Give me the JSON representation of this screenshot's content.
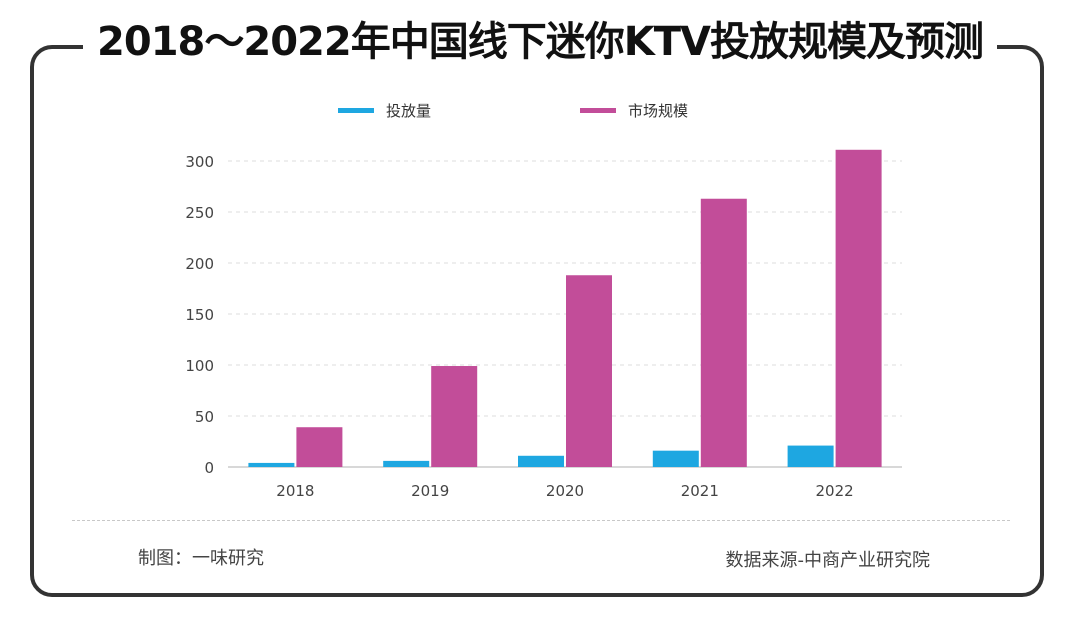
{
  "header": {
    "title": "2018～2022年中国线下迷你KTV投放规模及预测"
  },
  "footer": {
    "left": "制图：一味研究",
    "right": "数据来源-中商产业研究院"
  },
  "colors": {
    "series_0": "#1ea7e1",
    "series_1": "#c24d99",
    "frame": "#333333"
  },
  "chart_data": {
    "type": "bar",
    "title": "",
    "xlabel": "",
    "ylabel": "",
    "categories": [
      "2018",
      "2019",
      "2020",
      "2021",
      "2022"
    ],
    "series": [
      {
        "name": "投放量",
        "values": [
          4,
          6,
          11,
          16,
          21
        ]
      },
      {
        "name": "市场规模",
        "values": [
          39,
          99,
          188,
          263,
          311
        ]
      }
    ],
    "ylim": [
      0,
      300
    ],
    "yticks": [
      0,
      50,
      100,
      150,
      200,
      250,
      300
    ],
    "grid": true,
    "legend": "top-center"
  }
}
